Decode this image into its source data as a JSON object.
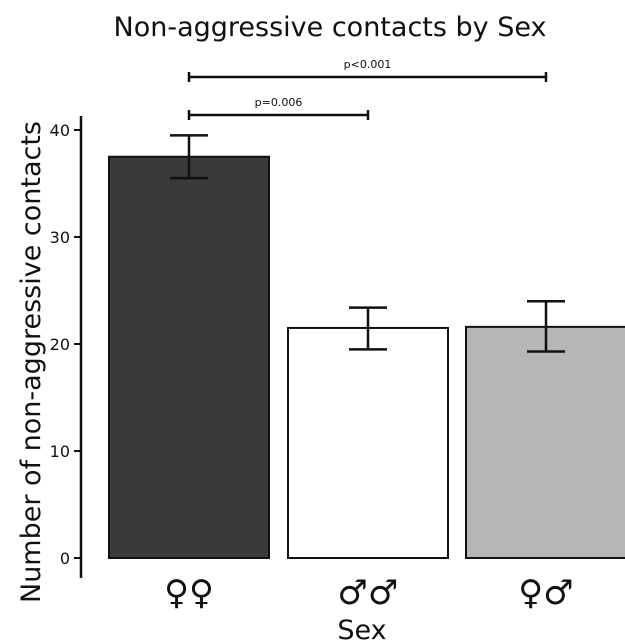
{
  "chart_data": {
    "type": "bar",
    "title": "Non-aggressive contacts by Sex",
    "xlabel": "Sex",
    "ylabel": "Number of non-aggressive contacts",
    "categories": [
      "♀♀",
      "♂♂",
      "♀♂"
    ],
    "values": [
      37.5,
      21.5,
      21.6
    ],
    "error_low": [
      35.5,
      19.5,
      19.3
    ],
    "error_high": [
      39.5,
      23.4,
      24.0
    ],
    "bar_colors": [
      "#3a3a3c",
      "#ffffff",
      "#b5b6b8"
    ],
    "ylim": [
      0,
      40
    ],
    "yticks": [
      0,
      10,
      20,
      30,
      40
    ],
    "ytick_labels": [
      "0",
      "10",
      "20",
      "30",
      "40"
    ],
    "grid": false,
    "annotations": [
      {
        "text": "p=0.006",
        "from": 0,
        "to": 1,
        "level": 1
      },
      {
        "text": "p<0.001",
        "from": 0,
        "to": 2,
        "level": 2
      }
    ]
  }
}
